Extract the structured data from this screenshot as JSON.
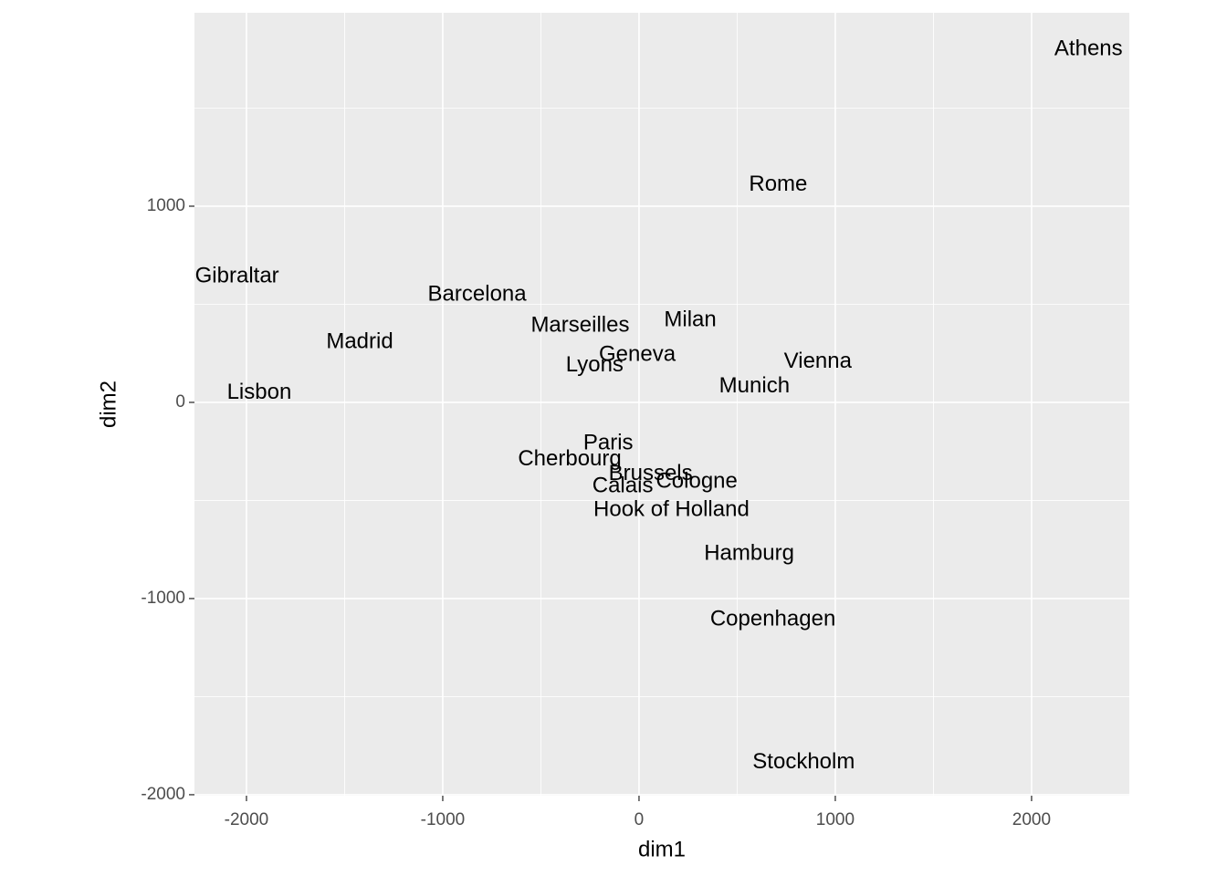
{
  "chart_data": {
    "type": "text-scatter",
    "x_label": "dim1",
    "y_label": "dim2",
    "labels": [
      "Athens",
      "Barcelona",
      "Brussels",
      "Calais",
      "Cherbourg",
      "Cologne",
      "Copenhagen",
      "Geneva",
      "Gibraltar",
      "Hamburg",
      "Hook of Holland",
      "Lisbon",
      "Lyons",
      "Madrid",
      "Marseilles",
      "Milan",
      "Munich",
      "Paris",
      "Rome",
      "Stockholm",
      "Vienna"
    ],
    "x": [
      2290,
      -825,
      59,
      -83,
      -353,
      294,
      682,
      -9,
      -2048,
      561,
      165,
      -1935,
      -226,
      -1423,
      -300,
      261,
      588,
      -157,
      709,
      839,
      911
    ],
    "y": [
      1799,
      547,
      -367,
      -430,
      -291,
      -405,
      -1109,
      240,
      642,
      -773,
      -549,
      49,
      187,
      306,
      389,
      417,
      81,
      -211,
      1109,
      -1837,
      206
    ],
    "xlim": [
      -2265,
      2498
    ],
    "ylim": [
      -2005,
      1986
    ],
    "xticks": [
      -2000,
      -1000,
      0,
      1000,
      2000
    ],
    "yticks": [
      -2000,
      -1000,
      0,
      1000
    ],
    "xminor": [
      -1500,
      -500,
      500,
      1500
    ],
    "yminor": [
      -1500,
      -500,
      500,
      1500
    ],
    "grid": true,
    "color": "#000000"
  }
}
